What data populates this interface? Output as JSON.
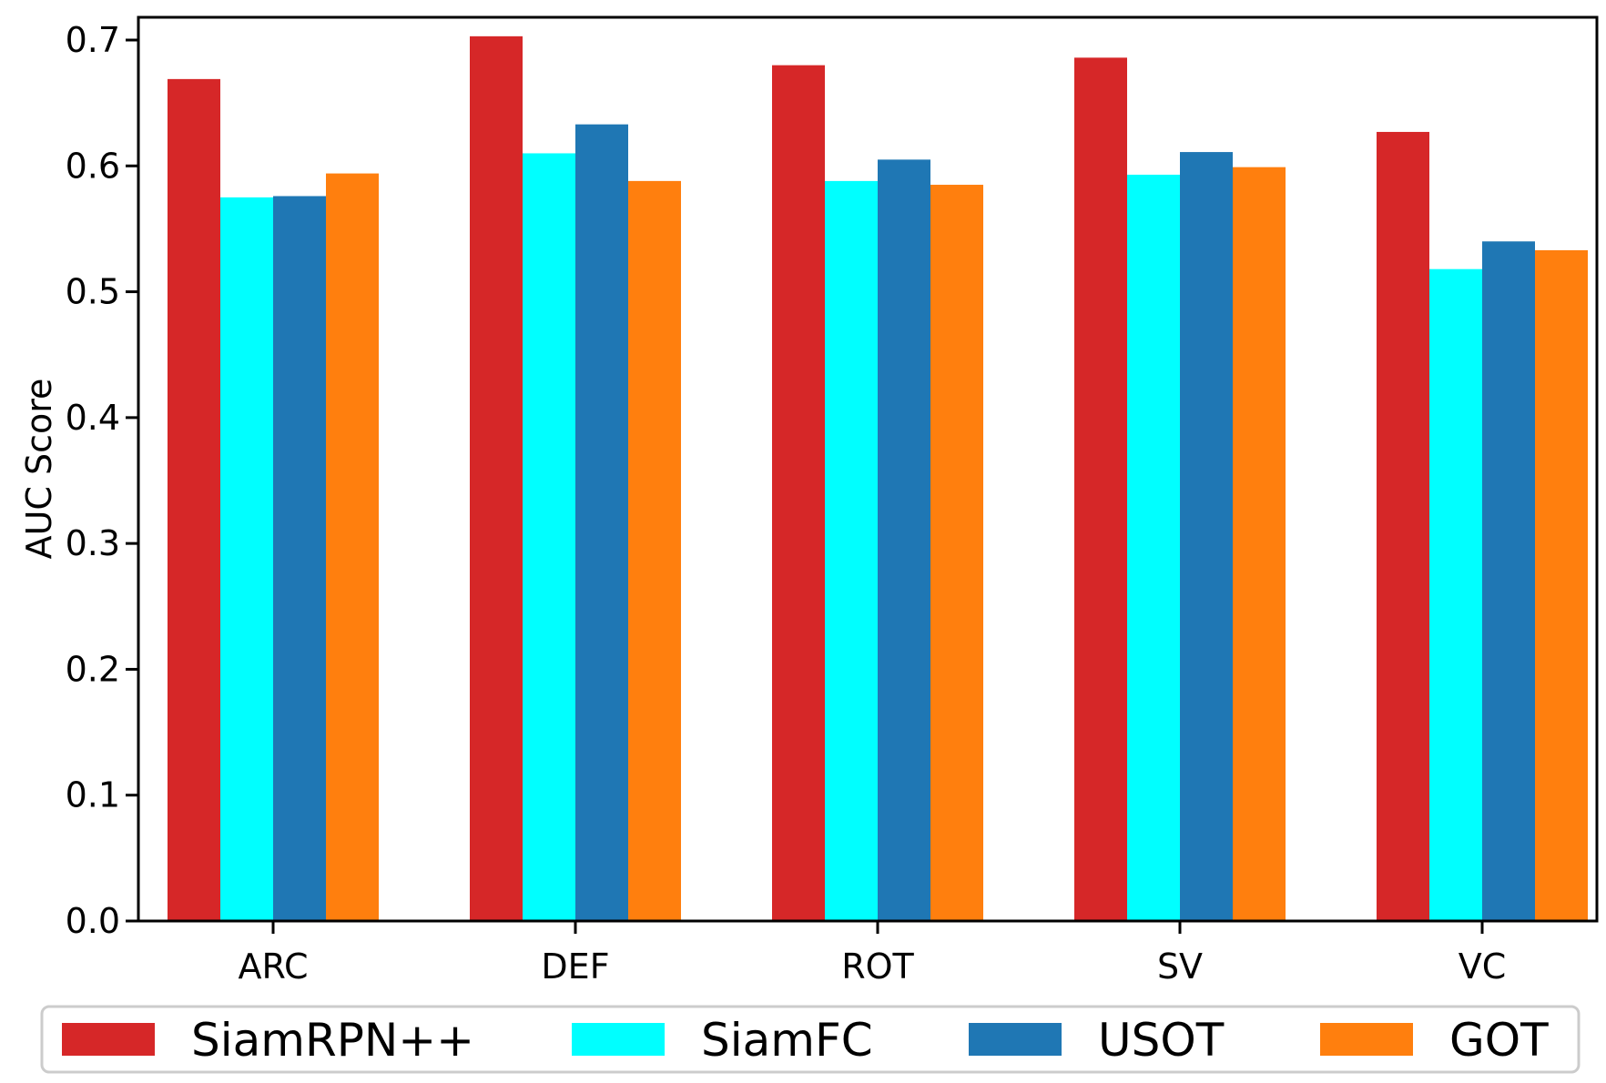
{
  "chart_data": {
    "type": "bar",
    "categories": [
      "ARC",
      "DEF",
      "ROT",
      "SV",
      "VC"
    ],
    "series": [
      {
        "name": "SiamRPN++",
        "color": "#d62728",
        "values": [
          0.669,
          0.703,
          0.68,
          0.686,
          0.627
        ]
      },
      {
        "name": "SiamFC",
        "color": "#00ffff",
        "values": [
          0.575,
          0.61,
          0.588,
          0.593,
          0.518
        ]
      },
      {
        "name": "USOT",
        "color": "#1f77b4",
        "values": [
          0.576,
          0.633,
          0.605,
          0.611,
          0.54
        ]
      },
      {
        "name": "GOT",
        "color": "#ff7f0e",
        "values": [
          0.594,
          0.588,
          0.585,
          0.599,
          0.533
        ]
      }
    ],
    "ylabel": "AUC Score",
    "ylim": [
      0,
      0.7
    ],
    "yticks": [
      "0.0",
      "0.1",
      "0.2",
      "0.3",
      "0.4",
      "0.5",
      "0.6",
      "0.7"
    ],
    "grid": false,
    "legend_position": "bottom"
  }
}
